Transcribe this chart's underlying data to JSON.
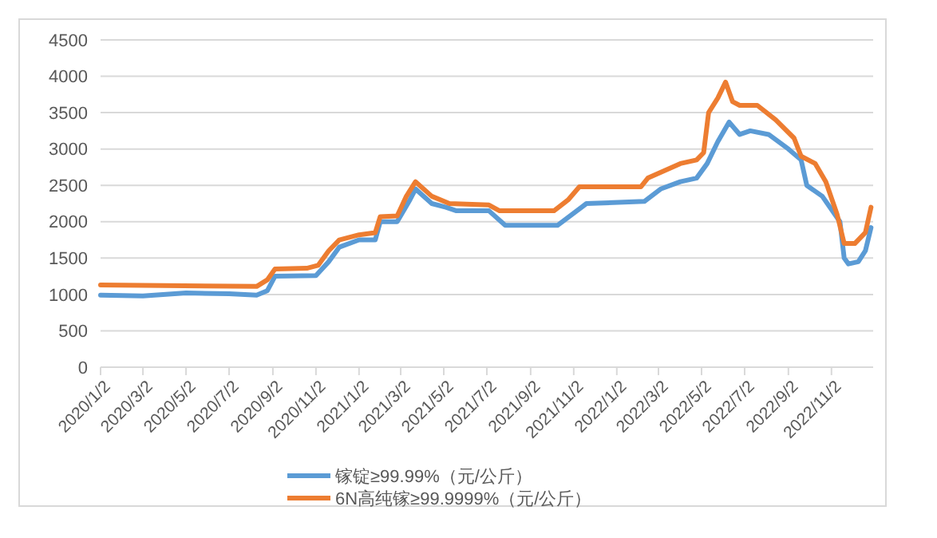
{
  "chart_data": {
    "type": "line",
    "xlim": [
      "2020-01-02",
      "2022-12-31"
    ],
    "xticks": [
      {
        "value": "2020-01-02",
        "label": "2020/1/2"
      },
      {
        "value": "2020-03-02",
        "label": "2020/3/2"
      },
      {
        "value": "2020-05-02",
        "label": "2020/5/2"
      },
      {
        "value": "2020-07-02",
        "label": "2020/7/2"
      },
      {
        "value": "2020-09-02",
        "label": "2020/9/2"
      },
      {
        "value": "2020-11-02",
        "label": "2020/11/2"
      },
      {
        "value": "2021-01-02",
        "label": "2021/1/2"
      },
      {
        "value": "2021-03-02",
        "label": "2021/3/2"
      },
      {
        "value": "2021-05-02",
        "label": "2021/5/2"
      },
      {
        "value": "2021-07-02",
        "label": "2021/7/2"
      },
      {
        "value": "2021-09-02",
        "label": "2021/9/2"
      },
      {
        "value": "2021-11-02",
        "label": "2021/11/2"
      },
      {
        "value": "2022-01-02",
        "label": "2022/1/2"
      },
      {
        "value": "2022-03-02",
        "label": "2022/3/2"
      },
      {
        "value": "2022-05-02",
        "label": "2022/5/2"
      },
      {
        "value": "2022-07-02",
        "label": "2022/7/2"
      },
      {
        "value": "2022-09-02",
        "label": "2022/9/2"
      },
      {
        "value": "2022-11-02",
        "label": "2022/11/2"
      }
    ],
    "ylim": [
      0,
      4500
    ],
    "yticks": [
      0,
      500,
      1000,
      1500,
      2000,
      2500,
      3000,
      3500,
      4000,
      4500
    ],
    "grid": "y",
    "legend": "bottom",
    "line_style": "solid",
    "series": [
      {
        "name": "镓锭≥99.99%（元/公斤）",
        "color": "#5b9bd5",
        "x": [
          "2020-01-02",
          "2020-03-02",
          "2020-05-02",
          "2020-07-02",
          "2020-08-10",
          "2020-08-25",
          "2020-09-05",
          "2020-11-02",
          "2020-11-20",
          "2020-12-05",
          "2021-01-02",
          "2021-01-25",
          "2021-02-01",
          "2021-02-25",
          "2021-03-15",
          "2021-03-23",
          "2021-04-15",
          "2021-05-05",
          "2021-05-20",
          "2021-07-05",
          "2021-07-28",
          "2021-10-10",
          "2021-11-20",
          "2022-02-10",
          "2022-03-05",
          "2022-04-02",
          "2022-04-25",
          "2022-05-10",
          "2022-05-25",
          "2022-06-10",
          "2022-06-25",
          "2022-07-10",
          "2022-08-05",
          "2022-09-02",
          "2022-09-20",
          "2022-09-28",
          "2022-10-20",
          "2022-11-14",
          "2022-11-20",
          "2022-11-26",
          "2022-12-10",
          "2022-12-20",
          "2022-12-28"
        ],
        "values": [
          990,
          980,
          1020,
          1010,
          990,
          1050,
          1250,
          1260,
          1450,
          1650,
          1750,
          1750,
          2000,
          2000,
          2300,
          2450,
          2250,
          2200,
          2150,
          2150,
          1950,
          1950,
          2250,
          2280,
          2450,
          2550,
          2600,
          2800,
          3100,
          3370,
          3200,
          3250,
          3200,
          3000,
          2850,
          2500,
          2350,
          2000,
          1500,
          1420,
          1450,
          1600,
          1920
        ]
      },
      {
        "name": "6N高纯镓≥99.9999%（元/公斤）",
        "color": "#ed7d31",
        "x": [
          "2020-01-02",
          "2020-08-10",
          "2020-08-25",
          "2020-09-05",
          "2020-10-20",
          "2020-11-05",
          "2020-11-20",
          "2020-12-05",
          "2021-01-02",
          "2021-01-25",
          "2021-02-01",
          "2021-02-25",
          "2021-03-10",
          "2021-03-23",
          "2021-04-15",
          "2021-05-10",
          "2021-07-05",
          "2021-07-20",
          "2021-10-05",
          "2021-10-25",
          "2021-11-10",
          "2022-02-05",
          "2022-02-15",
          "2022-03-10",
          "2022-04-02",
          "2022-04-25",
          "2022-05-05",
          "2022-05-12",
          "2022-05-25",
          "2022-06-05",
          "2022-06-15",
          "2022-06-25",
          "2022-07-20",
          "2022-08-15",
          "2022-09-10",
          "2022-09-20",
          "2022-10-10",
          "2022-10-25",
          "2022-11-10",
          "2022-11-20",
          "2022-12-05",
          "2022-12-20",
          "2022-12-28"
        ],
        "values": [
          1130,
          1110,
          1200,
          1350,
          1360,
          1400,
          1600,
          1750,
          1820,
          1850,
          2070,
          2080,
          2350,
          2550,
          2350,
          2250,
          2230,
          2150,
          2150,
          2300,
          2480,
          2480,
          2600,
          2700,
          2800,
          2850,
          2950,
          3500,
          3700,
          3920,
          3650,
          3600,
          3600,
          3400,
          3150,
          2900,
          2800,
          2550,
          2100,
          1700,
          1700,
          1850,
          2200
        ]
      }
    ]
  }
}
